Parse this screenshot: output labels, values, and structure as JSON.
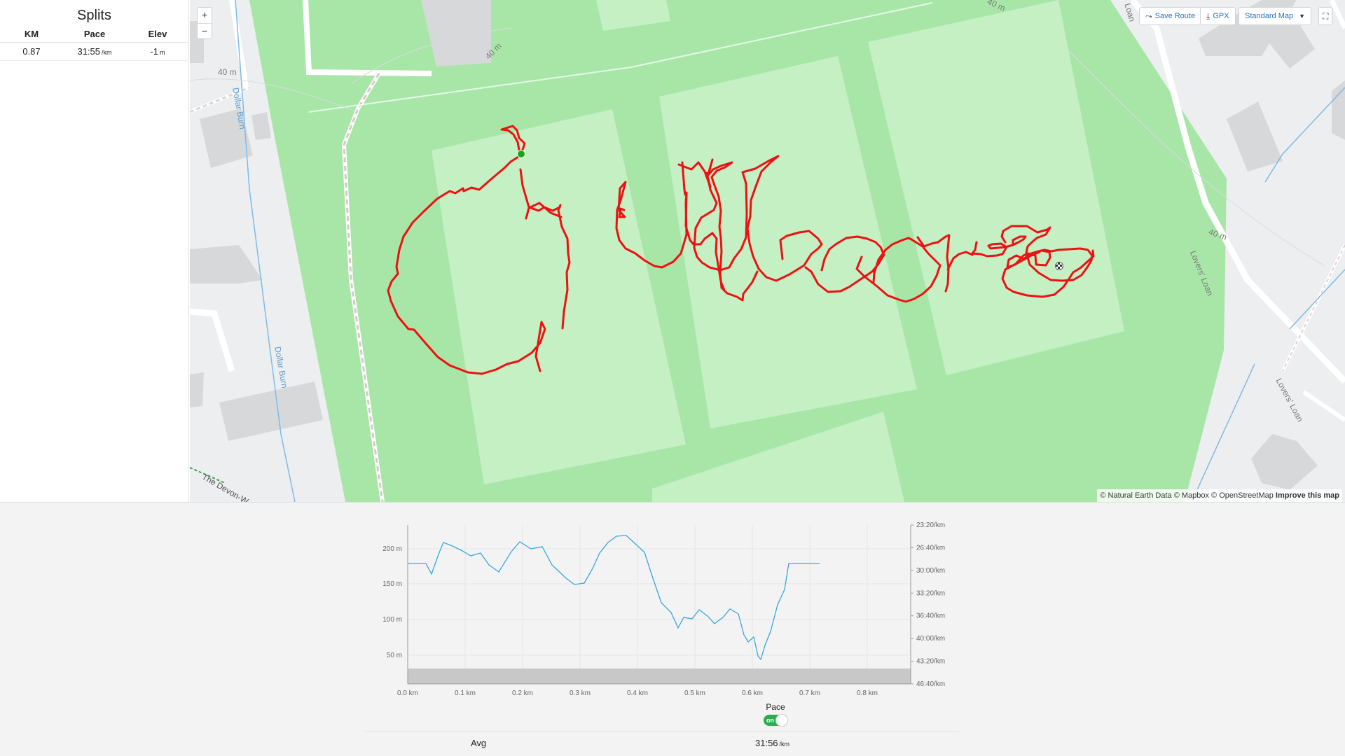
{
  "splits": {
    "title": "Splits",
    "headers": [
      "KM",
      "Pace",
      "Elev"
    ],
    "rows": [
      {
        "km": "0.87",
        "pace": "31:55",
        "pace_unit": "/km",
        "elev": "-1",
        "elev_unit": "m"
      }
    ]
  },
  "map": {
    "zoom_in": "+",
    "zoom_out": "−",
    "toolbar": {
      "save_route": "Save Route",
      "gpx": "GPX",
      "map_style": "Standard Map"
    },
    "labels": {
      "dollar_burn_1": "Dollar Burn",
      "dollar_burn_2": "Dollar Burn",
      "lovers_loan_1": "Lovers' Loan",
      "lovers_loan_2": "Lovers' Loan",
      "lovers_loan_3": "Loan",
      "contour_40_left": "40 m",
      "contour_40_right": "40 m",
      "contour_40_mid": "40 m",
      "contour_40_top": "40 m",
      "devon_way": "The Devon-W"
    },
    "attribution": {
      "text": "© Natural Earth Data © Mapbox © OpenStreetMap",
      "improve": "Improve this map"
    },
    "colors": {
      "route": "#ee1111",
      "park": "#a8e6a8",
      "pitch": "#c4f0c4",
      "road": "#ffffff",
      "building": "#d6d8da",
      "water": "#7fbbe8"
    }
  },
  "chart": {
    "x_ticks": [
      "0.0 km",
      "0.1 km",
      "0.2 km",
      "0.3 km",
      "0.4 km",
      "0.5 km",
      "0.6 km",
      "0.7 km",
      "0.8 km"
    ],
    "left_ticks": [
      "200 m",
      "150 m",
      "100 m",
      "50 m"
    ],
    "right_ticks": [
      "23:20/km",
      "26:40/km",
      "30:00/km",
      "33:20/km",
      "36:40/km",
      "40:00/km",
      "43:20/km",
      "46:40/km"
    ],
    "pace_label": "Pace",
    "toggle_text": "on",
    "avg_label": "Avg",
    "avg_value": "31:56",
    "avg_unit": "/km",
    "line_color": "#3aa6dd"
  }
}
